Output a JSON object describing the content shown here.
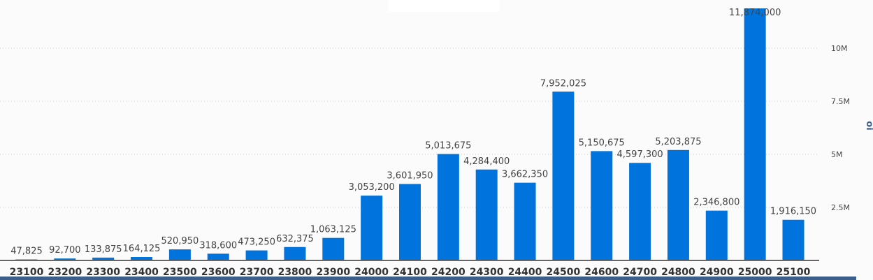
{
  "chart_data": {
    "type": "bar",
    "title": "",
    "xlabel": "",
    "ylabel": "oi",
    "categories": [
      "23100",
      "23200",
      "23300",
      "23400",
      "23500",
      "23600",
      "23700",
      "23800",
      "23900",
      "24000",
      "24100",
      "24200",
      "24300",
      "24400",
      "24500",
      "24600",
      "24700",
      "24800",
      "24900",
      "25000",
      "25100"
    ],
    "values": [
      47825,
      92700,
      133875,
      164125,
      520950,
      318600,
      473250,
      632375,
      1063125,
      3053200,
      3601950,
      5013675,
      4284400,
      3662350,
      7952025,
      5150675,
      4597300,
      5203875,
      2346800,
      11874000,
      1916150
    ],
    "data_labels": [
      "47,825",
      "92,700",
      "133,875",
      "164,125",
      "520,950",
      "318,600",
      "473,250",
      "632,375",
      "1,063,125",
      "3,053,200",
      "3,601,950",
      "5,013,675",
      "4,284,400",
      "3,662,350",
      "7,952,025",
      "5,150,675",
      "4,597,300",
      "5,203,875",
      "2,346,800",
      "11,874,000",
      "1,916,150"
    ],
    "yticks": [
      2500000,
      5000000,
      7500000,
      10000000
    ],
    "ytick_labels": [
      "2.5M",
      "5M",
      "7.5M",
      "10M"
    ],
    "ylim": [
      0,
      12000000
    ],
    "grid": true,
    "bar_color": "#0073dc",
    "y_axis_position": "right"
  }
}
